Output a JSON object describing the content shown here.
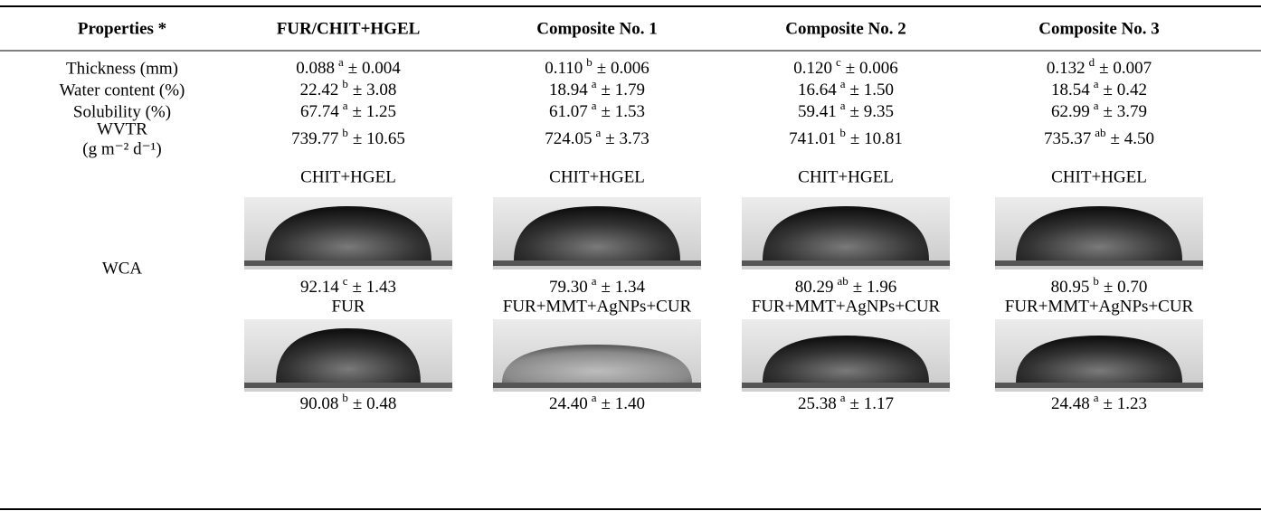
{
  "table": {
    "header": [
      "Properties *",
      "FUR/CHIT+HGEL",
      "Composite No. 1",
      "Composite No. 2",
      "Composite No. 3"
    ],
    "rows": [
      {
        "label": [
          "Thickness (mm)"
        ],
        "cells": [
          {
            "value": "0.088",
            "sup": "a",
            "error": "± 0.004"
          },
          {
            "value": "0.110",
            "sup": "b",
            "error": "± 0.006"
          },
          {
            "value": "0.120",
            "sup": "c",
            "error": "± 0.006"
          },
          {
            "value": "0.132",
            "sup": "d",
            "error": "± 0.007"
          }
        ]
      },
      {
        "label": [
          "Water content (%)"
        ],
        "cells": [
          {
            "value": "22.42",
            "sup": "b",
            "error": "± 3.08"
          },
          {
            "value": "18.94",
            "sup": "a",
            "error": "± 1.79"
          },
          {
            "value": "16.64",
            "sup": "a",
            "error": "± 1.50"
          },
          {
            "value": "18.54",
            "sup": "a",
            "error": "± 0.42"
          }
        ]
      },
      {
        "label": [
          "Solubility (%)"
        ],
        "cells": [
          {
            "value": "67.74",
            "sup": "a",
            "error": "± 1.25"
          },
          {
            "value": "61.07",
            "sup": "a",
            "error": "± 1.53"
          },
          {
            "value": "59.41",
            "sup": "a",
            "error": "± 9.35"
          },
          {
            "value": "62.99",
            "sup": "a",
            "error": "± 3.79"
          }
        ]
      },
      {
        "label": [
          "WVTR",
          "(g m⁻² d⁻¹)"
        ],
        "cells": [
          {
            "value": "739.77",
            "sup": "b",
            "error": "± 10.65"
          },
          {
            "value": "724.05",
            "sup": "a",
            "error": "± 3.73"
          },
          {
            "value": "741.01",
            "sup": "b",
            "error": "± 10.81"
          },
          {
            "value": "735.37",
            "sup": "ab",
            "error": "± 4.50"
          }
        ]
      }
    ],
    "wca": {
      "label": "WCA",
      "groups": [
        {
          "samples": [
            "CHIT+HGEL",
            "CHIT+HGEL",
            "CHIT+HGEL",
            "CHIT+HGEL"
          ],
          "cells": [
            {
              "value": "92.14",
              "sup": "c",
              "error": "± 1.43"
            },
            {
              "value": "79.30",
              "sup": "a",
              "error": "± 1.34"
            },
            {
              "value": "80.29",
              "sup": "ab",
              "error": "± 1.96"
            },
            {
              "value": "80.95",
              "sup": "b",
              "error": "± 0.70"
            }
          ]
        },
        {
          "samples": [
            "FUR",
            "FUR+MMT+AgNPs+CUR",
            "FUR+MMT+AgNPs+CUR",
            "FUR+MMT+AgNPs+CUR"
          ],
          "cells": [
            {
              "value": "90.08",
              "sup": "b",
              "error": "± 0.48"
            },
            {
              "value": "24.40",
              "sup": "a",
              "error": "± 1.40"
            },
            {
              "value": "25.38",
              "sup": "a",
              "error": "± 1.17"
            },
            {
              "value": "24.48",
              "sup": "a",
              "error": "± 1.23"
            }
          ]
        }
      ]
    }
  }
}
